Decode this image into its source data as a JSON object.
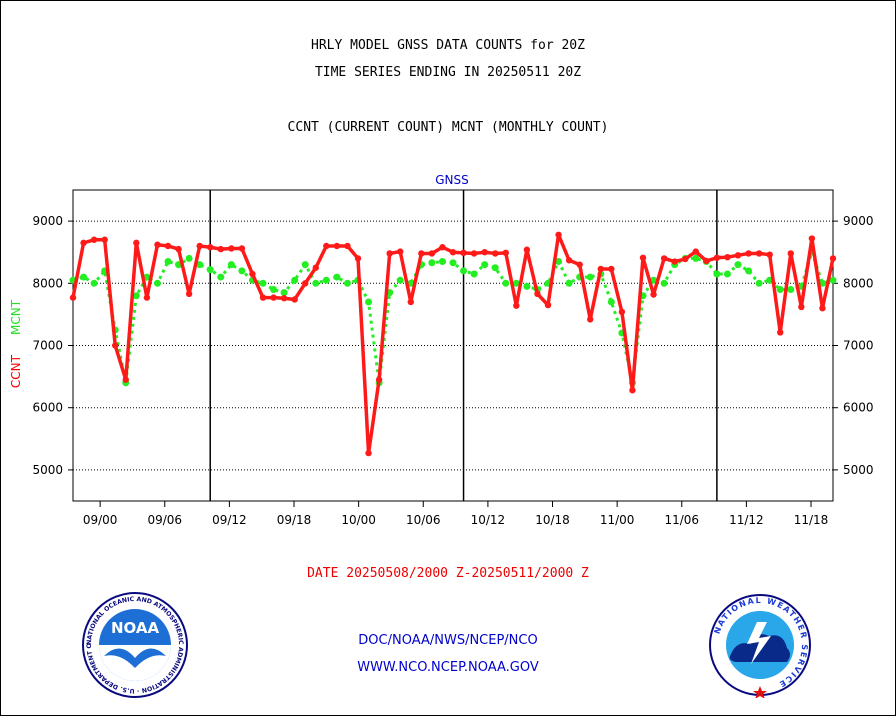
{
  "header": {
    "title_line1": "HRLY MODEL GNSS DATA COUNTS for 20Z",
    "title_line2": "TIME SERIES ENDING IN 20250511 20Z",
    "subtitle": "CCNT (CURRENT COUNT) MCNT (MONTHLY COUNT)"
  },
  "footer": {
    "date_range": "DATE 20250508/2000 Z-20250511/2000 Z",
    "org": "DOC/NOAA/NWS/NCEP/NCO",
    "url": "WWW.NCO.NCEP.NOAA.GOV"
  },
  "logos": {
    "noaa_text": "NOAA",
    "noaa_ring": "NATIONAL OCEANIC AND ATMOSPHERIC ADMINISTRATION · U.S. DEPARTMENT OF COMMERCE",
    "nws_ring": "NATIONAL WEATHER SERVICE"
  },
  "colors": {
    "ccnt": "#ff1a1a",
    "mcnt": "#22ee22",
    "axis_title": "#0000cc",
    "date_text": "#ee0000",
    "footer_text": "#0000cc"
  },
  "chart_data": {
    "type": "line",
    "title": "GNSS",
    "ylabel_ccnt": "CCNT",
    "ylabel_mcnt": "MCNT",
    "ylim": [
      4500,
      9500
    ],
    "yticks": [
      5000,
      6000,
      7000,
      8000,
      9000
    ],
    "xticks": [
      "09/00",
      "09/06",
      "09/12",
      "09/18",
      "10/00",
      "10/06",
      "10/12",
      "10/18",
      "11/00",
      "11/06",
      "11/12",
      "11/18"
    ],
    "x_start_tick_index": -0.42,
    "x_end_tick_index": 11.34,
    "grid": "horizontal dotted",
    "day_separators_after_hours": [
      13,
      37,
      61,
      85
    ],
    "series": [
      {
        "name": "CCNT",
        "values": [
          7770,
          8650,
          8700,
          8700,
          7000,
          6450,
          8650,
          7770,
          8620,
          8600,
          8550,
          7830,
          8600,
          8580,
          8550,
          8560,
          8560,
          8150,
          7770,
          7770,
          7760,
          7740,
          8000,
          8250,
          8600,
          8600,
          8600,
          8400,
          5270,
          6450,
          8480,
          8510,
          7700,
          8480,
          8480,
          8580,
          8500,
          8490,
          8480,
          8500,
          8480,
          8490,
          7640,
          8540,
          7830,
          7650,
          8780,
          8370,
          8300,
          7420,
          8230,
          8230,
          7540,
          6280,
          8410,
          7820,
          8400,
          8350,
          8390,
          8510,
          8360,
          8410,
          8420,
          8450,
          8480,
          8480,
          8460,
          7210,
          8480,
          7620,
          8720,
          7600,
          8400
        ]
      },
      {
        "name": "MCNT",
        "values": [
          8050,
          8100,
          8000,
          8200,
          7250,
          6400,
          7800,
          8100,
          8000,
          8350,
          8300,
          8400,
          8300,
          8220,
          8100,
          8300,
          8200,
          8050,
          8000,
          7900,
          7850,
          8050,
          8300,
          8000,
          8050,
          8100,
          8000,
          8050,
          7700,
          6400,
          7850,
          8050,
          8000,
          8300,
          8330,
          8350,
          8330,
          8200,
          8150,
          8300,
          8250,
          8000,
          8000,
          7950,
          7900,
          8000,
          8350,
          8000,
          8100,
          8100,
          8150,
          7700,
          7200,
          6400,
          7800,
          8050,
          8000,
          8300,
          8400,
          8400,
          8350,
          8150,
          8150,
          8300,
          8200,
          8000,
          8050,
          7900,
          7900,
          7950,
          8500,
          8000,
          8050
        ]
      }
    ]
  }
}
